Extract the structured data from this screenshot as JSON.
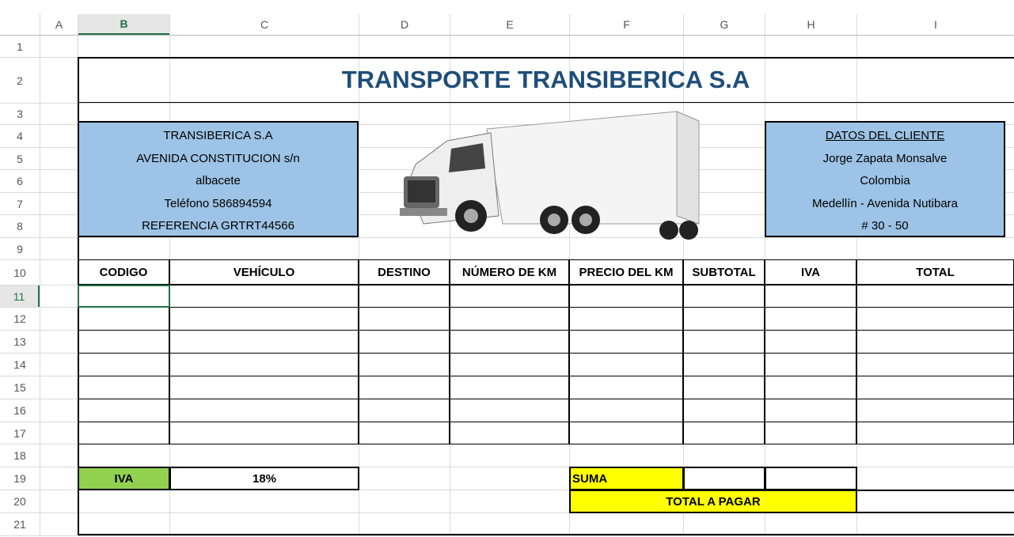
{
  "sheet": {
    "columns": [
      "A",
      "B",
      "C",
      "D",
      "E",
      "F",
      "G",
      "H",
      "I"
    ],
    "rows": [
      1,
      2,
      3,
      4,
      5,
      6,
      7,
      8,
      9,
      10,
      11,
      12,
      13,
      14,
      15,
      16,
      17,
      18,
      19,
      20,
      21
    ]
  },
  "title": "TRANSPORTE TRANSIBERICA S.A",
  "company": [
    "TRANSIBERICA S.A",
    "AVENIDA CONSTITUCION s/n",
    "albacete",
    "Teléfono 586894594",
    "REFERENCIA GRTRT44566"
  ],
  "client": [
    "DATOS DEL CLIENTE",
    "Jorge Zapata Monsalve",
    "Colombia",
    "Medellín - Avenida Nutibara",
    "# 30 - 50"
  ],
  "table": {
    "headers": [
      "CODIGO",
      "VEHÍCULO",
      "DESTINO",
      "NÚMERO DE KM",
      "PRECIO DEL KM",
      "SUBTOTAL",
      "IVA",
      "TOTAL"
    ]
  },
  "iva": {
    "label": "IVA",
    "value": "18%"
  },
  "suma": "SUMA",
  "total": "TOTAL A PAGAR"
}
